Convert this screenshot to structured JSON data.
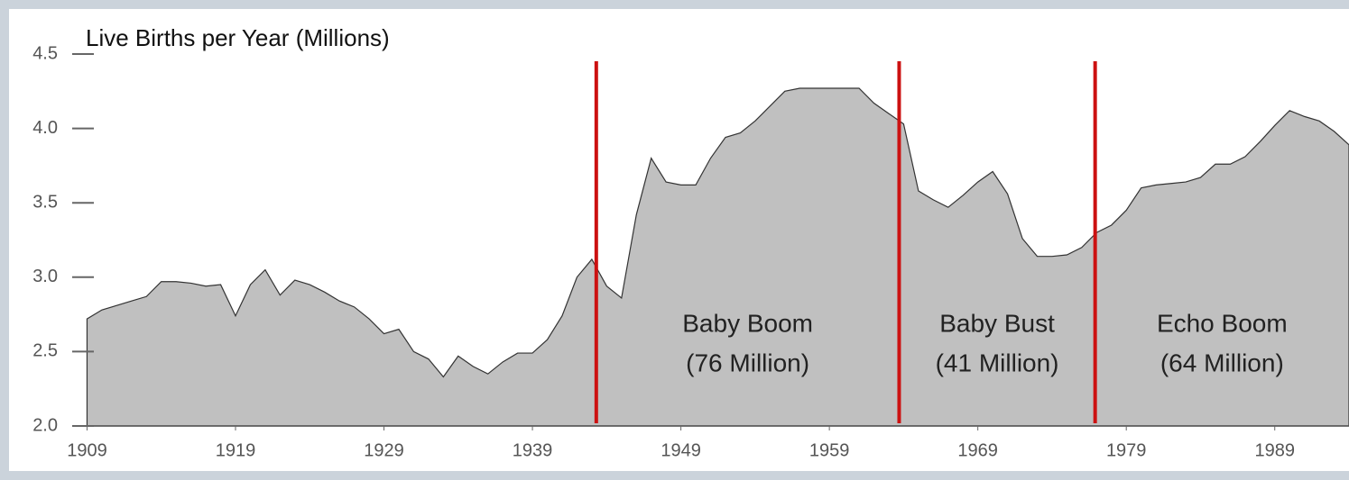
{
  "chart_data": {
    "type": "area",
    "title": "Live Births per Year (Millions)",
    "x": [
      1909,
      1910,
      1911,
      1912,
      1913,
      1914,
      1915,
      1916,
      1917,
      1918,
      1919,
      1920,
      1921,
      1922,
      1923,
      1924,
      1925,
      1926,
      1927,
      1928,
      1929,
      1930,
      1931,
      1932,
      1933,
      1934,
      1935,
      1936,
      1937,
      1938,
      1939,
      1940,
      1941,
      1942,
      1943,
      1944,
      1945,
      1946,
      1947,
      1948,
      1949,
      1950,
      1951,
      1952,
      1953,
      1954,
      1955,
      1956,
      1957,
      1958,
      1959,
      1960,
      1961,
      1962,
      1963,
      1964,
      1965,
      1966,
      1967,
      1968,
      1969,
      1970,
      1971,
      1972,
      1973,
      1974,
      1975,
      1976,
      1977,
      1978,
      1979,
      1980,
      1981,
      1982,
      1983,
      1984,
      1985,
      1986,
      1987,
      1988,
      1989,
      1990,
      1991,
      1992,
      1993,
      1994
    ],
    "values": [
      2.72,
      2.78,
      2.81,
      2.84,
      2.87,
      2.97,
      2.97,
      2.96,
      2.94,
      2.95,
      2.74,
      2.95,
      3.05,
      2.88,
      2.98,
      2.95,
      2.9,
      2.84,
      2.8,
      2.72,
      2.62,
      2.65,
      2.5,
      2.45,
      2.33,
      2.47,
      2.4,
      2.35,
      2.43,
      2.49,
      2.49,
      2.58,
      2.74,
      3.0,
      3.12,
      2.94,
      2.86,
      3.42,
      3.8,
      3.64,
      3.62,
      3.62,
      3.8,
      3.94,
      3.97,
      4.05,
      4.15,
      4.25,
      4.27,
      4.27,
      4.27,
      4.27,
      4.27,
      4.17,
      4.1,
      4.03,
      3.58,
      3.52,
      3.47,
      3.55,
      3.64,
      3.71,
      3.56,
      3.26,
      3.14,
      3.14,
      3.15,
      3.2,
      3.3,
      3.35,
      3.45,
      3.6,
      3.62,
      3.63,
      3.64,
      3.67,
      3.76,
      3.76,
      3.81,
      3.91,
      4.02,
      4.12,
      4.08,
      4.05,
      3.98,
      3.89
    ],
    "color": "#c0c0c0",
    "xlim": [
      1908,
      1994
    ],
    "xticks": [
      1909,
      1919,
      1929,
      1939,
      1949,
      1959,
      1969,
      1979,
      1989
    ],
    "ylim": [
      2.0,
      4.5
    ],
    "yticks": [
      {
        "value": 2,
        "label": "2.0"
      },
      2.5,
      {
        "value": 3,
        "label": "3.0"
      },
      3.5,
      {
        "value": 4,
        "label": "4.0"
      },
      4.5
    ],
    "grid": false,
    "markers": [
      1943.3,
      1963.7,
      1976.9
    ],
    "marker_color": "#cc1111",
    "annotations": [
      {
        "label": "Baby Boom",
        "sublabel": "(76 Million)"
      },
      {
        "label": "Baby Bust",
        "sublabel": "(41 Million)"
      },
      {
        "label": "Echo Boom",
        "sublabel": "(64 Million)"
      }
    ]
  }
}
